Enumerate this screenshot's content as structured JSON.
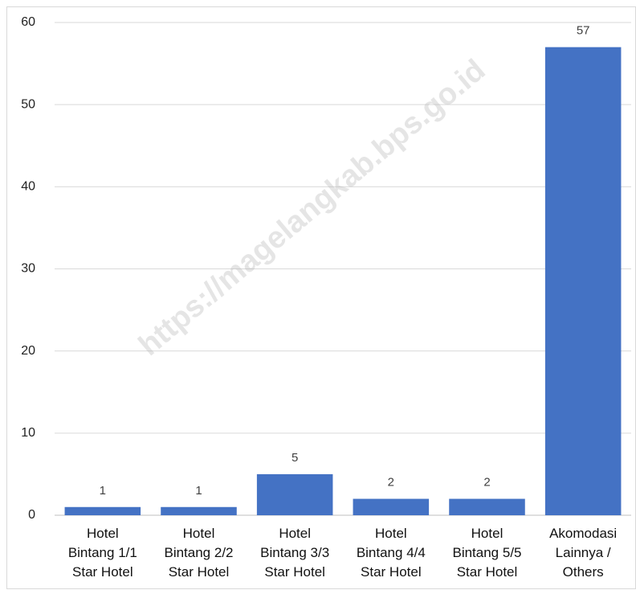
{
  "chart_data": {
    "type": "bar",
    "categories": [
      "Hotel\nBintang 1/1\nStar Hotel",
      "Hotel\nBintang 2/2\nStar Hotel",
      "Hotel\nBintang 3/3\nStar Hotel",
      "Hotel\nBintang 4/4\nStar Hotel",
      "Hotel\nBintang 5/5\nStar Hotel",
      "Akomodasi\nLainnya /\nOthers"
    ],
    "values": [
      1,
      1,
      5,
      2,
      2,
      57
    ],
    "color": "#4472c4",
    "ylim": [
      0,
      60
    ],
    "yticks": [
      0,
      10,
      20,
      30,
      40,
      50,
      60
    ],
    "grid": true,
    "watermark": "https://magelangkab.bps.go.id"
  }
}
